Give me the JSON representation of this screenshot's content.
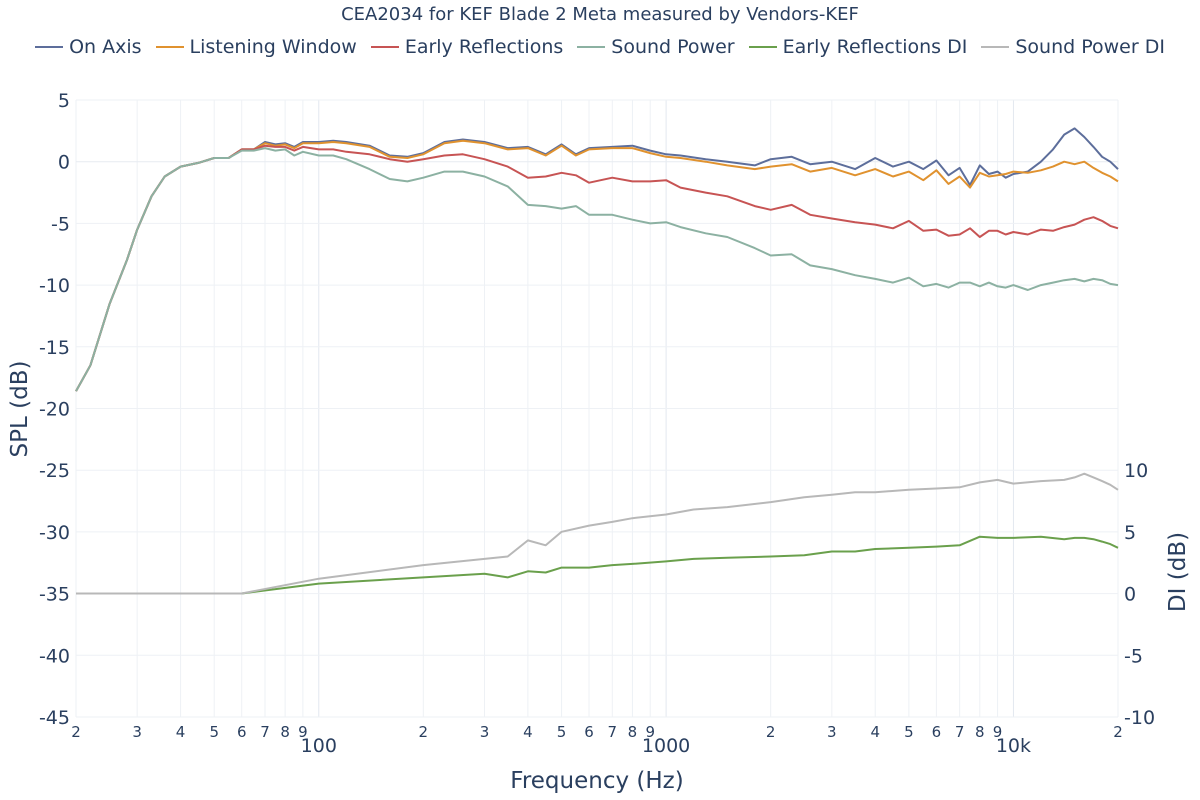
{
  "chart_data": {
    "type": "line",
    "title": "CEA2034 for KEF Blade 2 Meta measured by Vendors-KEF",
    "xlabel": "Frequency (Hz)",
    "ylabel": "SPL (dB)",
    "y2label": "DI (dB)",
    "xscale": "log",
    "xlim": [
      20,
      20000
    ],
    "ylim": [
      -45,
      5
    ],
    "y2lim": [
      -10,
      10
    ],
    "x_ticks": [
      {
        "value": 20,
        "label": "2"
      },
      {
        "value": 30,
        "label": "3"
      },
      {
        "value": 40,
        "label": "4"
      },
      {
        "value": 50,
        "label": "5"
      },
      {
        "value": 60,
        "label": "6"
      },
      {
        "value": 70,
        "label": "7"
      },
      {
        "value": 80,
        "label": "8"
      },
      {
        "value": 90,
        "label": "9"
      },
      {
        "value": 100,
        "label": "100"
      },
      {
        "value": 200,
        "label": "2"
      },
      {
        "value": 300,
        "label": "3"
      },
      {
        "value": 400,
        "label": "4"
      },
      {
        "value": 500,
        "label": "5"
      },
      {
        "value": 600,
        "label": "6"
      },
      {
        "value": 700,
        "label": "7"
      },
      {
        "value": 800,
        "label": "8"
      },
      {
        "value": 900,
        "label": "9"
      },
      {
        "value": 1000,
        "label": "1000"
      },
      {
        "value": 2000,
        "label": "2"
      },
      {
        "value": 3000,
        "label": "3"
      },
      {
        "value": 4000,
        "label": "4"
      },
      {
        "value": 5000,
        "label": "5"
      },
      {
        "value": 6000,
        "label": "6"
      },
      {
        "value": 7000,
        "label": "7"
      },
      {
        "value": 8000,
        "label": "8"
      },
      {
        "value": 9000,
        "label": "9"
      },
      {
        "value": 10000,
        "label": "10k"
      },
      {
        "value": 20000,
        "label": "2"
      }
    ],
    "y_ticks": [
      5,
      0,
      -5,
      -10,
      -15,
      -20,
      -25,
      -30,
      -35,
      -40,
      -45
    ],
    "y2_ticks": [
      10,
      5,
      0,
      -5,
      -10
    ],
    "legend_position": "top",
    "series": [
      {
        "name": "On Axis",
        "color": "#5d6e9b",
        "axis": "y",
        "x": [
          20,
          22,
          25,
          28,
          30,
          33,
          36,
          40,
          45,
          50,
          55,
          60,
          65,
          70,
          75,
          80,
          85,
          90,
          100,
          110,
          120,
          140,
          160,
          180,
          200,
          230,
          260,
          300,
          350,
          400,
          450,
          500,
          550,
          600,
          700,
          800,
          900,
          1000,
          1100,
          1300,
          1500,
          1800,
          2000,
          2300,
          2600,
          3000,
          3500,
          4000,
          4500,
          5000,
          5500,
          6000,
          6500,
          7000,
          7500,
          8000,
          8500,
          9000,
          9500,
          10000,
          11000,
          12000,
          13000,
          14000,
          15000,
          16000,
          17000,
          18000,
          19000,
          20000
        ],
        "y": [
          -18.6,
          -16.5,
          -11.5,
          -8.0,
          -5.5,
          -2.8,
          -1.2,
          -0.4,
          -0.1,
          0.3,
          0.3,
          1.0,
          1.0,
          1.6,
          1.4,
          1.5,
          1.2,
          1.6,
          1.6,
          1.7,
          1.6,
          1.3,
          0.5,
          0.4,
          0.7,
          1.6,
          1.8,
          1.6,
          1.1,
          1.2,
          0.6,
          1.4,
          0.6,
          1.1,
          1.2,
          1.3,
          0.9,
          0.6,
          0.5,
          0.2,
          0.0,
          -0.3,
          0.2,
          0.4,
          -0.2,
          0.0,
          -0.6,
          0.3,
          -0.4,
          0.0,
          -0.6,
          0.1,
          -1.1,
          -0.5,
          -1.9,
          -0.3,
          -1.0,
          -0.8,
          -1.3,
          -1.0,
          -0.8,
          0.0,
          1.0,
          2.2,
          2.7,
          2.0,
          1.2,
          0.4,
          0.0,
          -0.6
        ]
      },
      {
        "name": "Listening Window",
        "color": "#e0922f",
        "axis": "y",
        "x": [
          20,
          22,
          25,
          28,
          30,
          33,
          36,
          40,
          45,
          50,
          55,
          60,
          65,
          70,
          75,
          80,
          85,
          90,
          100,
          110,
          120,
          140,
          160,
          180,
          200,
          230,
          260,
          300,
          350,
          400,
          450,
          500,
          550,
          600,
          700,
          800,
          900,
          1000,
          1100,
          1300,
          1500,
          1800,
          2000,
          2300,
          2600,
          3000,
          3500,
          4000,
          4500,
          5000,
          5500,
          6000,
          6500,
          7000,
          7500,
          8000,
          8500,
          9000,
          9500,
          10000,
          11000,
          12000,
          13000,
          14000,
          15000,
          16000,
          17000,
          18000,
          19000,
          20000
        ],
        "y": [
          -18.6,
          -16.5,
          -11.5,
          -8.0,
          -5.5,
          -2.8,
          -1.2,
          -0.4,
          -0.1,
          0.3,
          0.3,
          1.0,
          1.0,
          1.5,
          1.3,
          1.4,
          1.1,
          1.5,
          1.5,
          1.6,
          1.5,
          1.2,
          0.4,
          0.3,
          0.6,
          1.5,
          1.7,
          1.5,
          1.0,
          1.1,
          0.5,
          1.3,
          0.5,
          1.0,
          1.1,
          1.1,
          0.7,
          0.4,
          0.3,
          0.0,
          -0.3,
          -0.6,
          -0.4,
          -0.2,
          -0.8,
          -0.5,
          -1.1,
          -0.6,
          -1.2,
          -0.8,
          -1.5,
          -0.7,
          -1.8,
          -1.2,
          -2.1,
          -0.9,
          -1.2,
          -1.1,
          -1.0,
          -0.8,
          -0.9,
          -0.7,
          -0.4,
          0.0,
          -0.2,
          0.0,
          -0.5,
          -0.9,
          -1.2,
          -1.6
        ]
      },
      {
        "name": "Early Reflections",
        "color": "#c75454",
        "axis": "y",
        "x": [
          20,
          22,
          25,
          28,
          30,
          33,
          36,
          40,
          45,
          50,
          55,
          60,
          65,
          70,
          75,
          80,
          85,
          90,
          100,
          110,
          120,
          140,
          160,
          180,
          200,
          230,
          260,
          300,
          350,
          400,
          450,
          500,
          550,
          600,
          700,
          800,
          900,
          1000,
          1100,
          1300,
          1500,
          1800,
          2000,
          2300,
          2600,
          3000,
          3500,
          4000,
          4500,
          5000,
          5500,
          6000,
          6500,
          7000,
          7500,
          8000,
          8500,
          9000,
          9500,
          10000,
          11000,
          12000,
          13000,
          14000,
          15000,
          16000,
          17000,
          18000,
          19000,
          20000
        ],
        "y": [
          -18.6,
          -16.5,
          -11.5,
          -8.0,
          -5.5,
          -2.8,
          -1.2,
          -0.4,
          -0.1,
          0.3,
          0.3,
          1.0,
          1.0,
          1.3,
          1.2,
          1.2,
          0.9,
          1.2,
          1.0,
          1.0,
          0.8,
          0.6,
          0.2,
          0.0,
          0.2,
          0.5,
          0.6,
          0.2,
          -0.4,
          -1.3,
          -1.2,
          -0.9,
          -1.1,
          -1.7,
          -1.3,
          -1.6,
          -1.6,
          -1.5,
          -2.1,
          -2.5,
          -2.8,
          -3.6,
          -3.9,
          -3.5,
          -4.3,
          -4.6,
          -4.9,
          -5.1,
          -5.4,
          -4.8,
          -5.6,
          -5.5,
          -6.0,
          -5.9,
          -5.4,
          -6.1,
          -5.6,
          -5.6,
          -5.9,
          -5.7,
          -5.9,
          -5.5,
          -5.6,
          -5.3,
          -5.1,
          -4.7,
          -4.5,
          -4.8,
          -5.2,
          -5.4
        ]
      },
      {
        "name": "Sound Power",
        "color": "#8cb1a2",
        "axis": "y",
        "x": [
          20,
          22,
          25,
          28,
          30,
          33,
          36,
          40,
          45,
          50,
          55,
          60,
          65,
          70,
          75,
          80,
          85,
          90,
          100,
          110,
          120,
          140,
          160,
          180,
          200,
          230,
          260,
          300,
          350,
          400,
          450,
          500,
          550,
          600,
          700,
          800,
          900,
          1000,
          1100,
          1300,
          1500,
          1800,
          2000,
          2300,
          2600,
          3000,
          3500,
          4000,
          4500,
          5000,
          5500,
          6000,
          6500,
          7000,
          7500,
          8000,
          8500,
          9000,
          9500,
          10000,
          11000,
          12000,
          13000,
          14000,
          15000,
          16000,
          17000,
          18000,
          19000,
          20000
        ],
        "y": [
          -18.6,
          -16.5,
          -11.5,
          -8.0,
          -5.5,
          -2.8,
          -1.2,
          -0.4,
          -0.1,
          0.3,
          0.3,
          0.9,
          0.9,
          1.1,
          0.9,
          1.0,
          0.5,
          0.8,
          0.5,
          0.5,
          0.2,
          -0.6,
          -1.4,
          -1.6,
          -1.3,
          -0.8,
          -0.8,
          -1.2,
          -2.0,
          -3.5,
          -3.6,
          -3.8,
          -3.6,
          -4.3,
          -4.3,
          -4.7,
          -5.0,
          -4.9,
          -5.3,
          -5.8,
          -6.1,
          -7.0,
          -7.6,
          -7.5,
          -8.4,
          -8.7,
          -9.2,
          -9.5,
          -9.8,
          -9.4,
          -10.1,
          -9.9,
          -10.2,
          -9.8,
          -9.8,
          -10.1,
          -9.8,
          -10.1,
          -10.2,
          -10.0,
          -10.4,
          -10.0,
          -9.8,
          -9.6,
          -9.5,
          -9.7,
          -9.5,
          -9.6,
          -9.9,
          -10.0
        ]
      },
      {
        "name": "Early Reflections DI",
        "color": "#6aa04c",
        "axis": "y2",
        "x": [
          20,
          30,
          40,
          50,
          60,
          100,
          200,
          300,
          350,
          400,
          450,
          500,
          600,
          700,
          800,
          1000,
          1200,
          1500,
          2000,
          2500,
          3000,
          3500,
          4000,
          5000,
          6000,
          7000,
          8000,
          9000,
          10000,
          12000,
          14000,
          15000,
          16000,
          17000,
          18000,
          19000,
          20000
        ],
        "y": [
          0,
          0,
          0,
          0,
          0,
          0.8,
          1.3,
          1.6,
          1.3,
          1.8,
          1.7,
          2.1,
          2.1,
          2.3,
          2.4,
          2.6,
          2.8,
          2.9,
          3.0,
          3.1,
          3.4,
          3.4,
          3.6,
          3.7,
          3.8,
          3.9,
          4.6,
          4.5,
          4.5,
          4.6,
          4.4,
          4.5,
          4.5,
          4.4,
          4.2,
          4.0,
          3.7
        ]
      },
      {
        "name": "Sound Power DI",
        "color": "#b8b8b8",
        "axis": "y2",
        "x": [
          20,
          30,
          40,
          50,
          60,
          100,
          200,
          300,
          350,
          400,
          450,
          500,
          600,
          700,
          800,
          1000,
          1200,
          1500,
          2000,
          2500,
          3000,
          3500,
          4000,
          5000,
          6000,
          7000,
          8000,
          9000,
          10000,
          12000,
          14000,
          15000,
          16000,
          17000,
          18000,
          19000,
          20000
        ],
        "y": [
          0,
          0,
          0,
          0,
          0,
          1.2,
          2.3,
          2.8,
          3.0,
          4.3,
          3.9,
          5.0,
          5.5,
          5.8,
          6.1,
          6.4,
          6.8,
          7.0,
          7.4,
          7.8,
          8.0,
          8.2,
          8.2,
          8.4,
          8.5,
          8.6,
          9.0,
          9.2,
          8.9,
          9.1,
          9.2,
          9.4,
          9.7,
          9.4,
          9.1,
          8.8,
          8.4
        ]
      }
    ]
  }
}
